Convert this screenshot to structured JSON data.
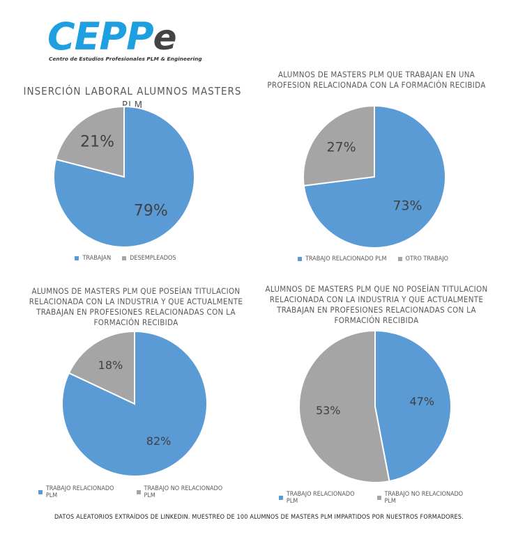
{
  "logo": {
    "word": "CEPP",
    "word_suffix": "e",
    "subtitle": "Centro de Estudios Profesionales PLM & Engineering"
  },
  "colors": {
    "blue": "#5b9bd5",
    "gray": "#a5a5a5"
  },
  "chart_data": [
    {
      "type": "pie",
      "title": "Inserción laboral alumnos masters PLM",
      "categories": [
        "Trabajan",
        "Desempleados"
      ],
      "values": [
        79,
        21
      ],
      "labels": [
        "79%",
        "21%"
      ],
      "legend": "bottom"
    },
    {
      "type": "pie",
      "title": "Alumnos de masters PLM que trabajan en una profesion relacionada con la formación recibida",
      "categories": [
        "Trabajo relacionado PLM",
        "Otro trabajo"
      ],
      "values": [
        73,
        27
      ],
      "labels": [
        "73%",
        "27%"
      ],
      "legend": "bottom"
    },
    {
      "type": "pie",
      "title": "Alumnos de masters PLM que poseían titulacion relacionada con la industria y que actualmente trabajan en profesiones relacionadas con la formación recibida",
      "categories": [
        "Trabajo relacionado PLM",
        "Trabajo no relacionado PLM"
      ],
      "values": [
        82,
        18
      ],
      "labels": [
        "82%",
        "18%"
      ],
      "legend": "bottom"
    },
    {
      "type": "pie",
      "title": "Alumnos de masters PLM que no poseían titulacion relacionada con la industria y que actualmente trabajan en profesiones relacionadas con la formación recibida",
      "categories": [
        "Trabajo relacionado PLM",
        "Trabajo no relacionado PLM"
      ],
      "values": [
        47,
        53
      ],
      "labels": [
        "47%",
        "53%"
      ],
      "legend": "bottom"
    }
  ],
  "footer": "Datos aleatorios extraídos de LinkedIn. Muestreo de 100 alumnos de masters PLM impartidos por nuestros formadores."
}
